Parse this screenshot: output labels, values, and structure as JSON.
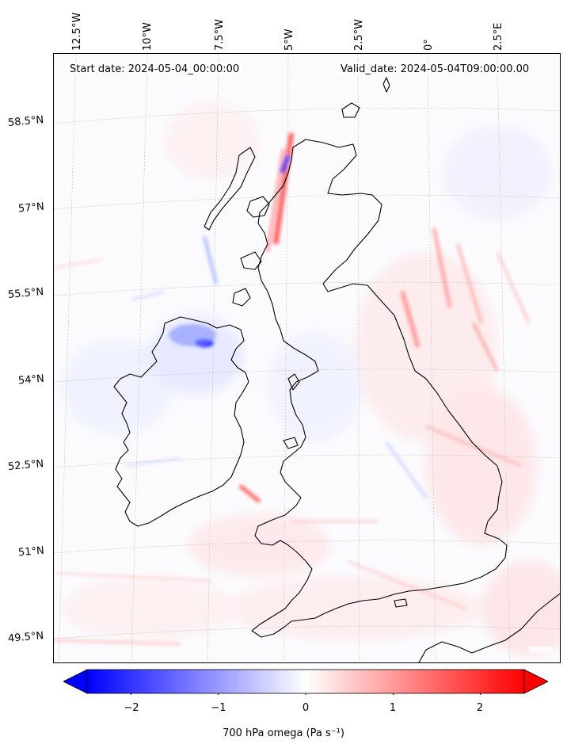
{
  "header": {
    "start_date": "Start date: 2024-05-04_00:00:00",
    "valid_date": "Valid_date: 2024-05-04T09:00:00.00"
  },
  "axes": {
    "longitude_labels": [
      "12.5°W",
      "10°W",
      "7.5°W",
      "5°W",
      "2.5°W",
      "0°",
      "2.5°E"
    ],
    "latitude_labels": [
      "58.5°N",
      "57°N",
      "55.5°N",
      "54°N",
      "52.5°N",
      "51°N",
      "49.5°N"
    ],
    "gridlines": true
  },
  "colorbar": {
    "ticks": [
      "−2",
      "−1",
      "0",
      "1",
      "2"
    ],
    "tick_values": [
      -2,
      -1,
      0,
      1,
      2
    ],
    "range": [
      -2.5,
      2.5
    ],
    "extend": "both",
    "label": "700 hPa omega (Pa s⁻¹)",
    "colormap": "bwr",
    "colors": {
      "min": "#0000ff",
      "mid": "#ffffff",
      "max": "#ff0000"
    }
  },
  "map": {
    "region": "British Isles",
    "field": "700 hPa omega",
    "coastline_color": "#000000"
  }
}
